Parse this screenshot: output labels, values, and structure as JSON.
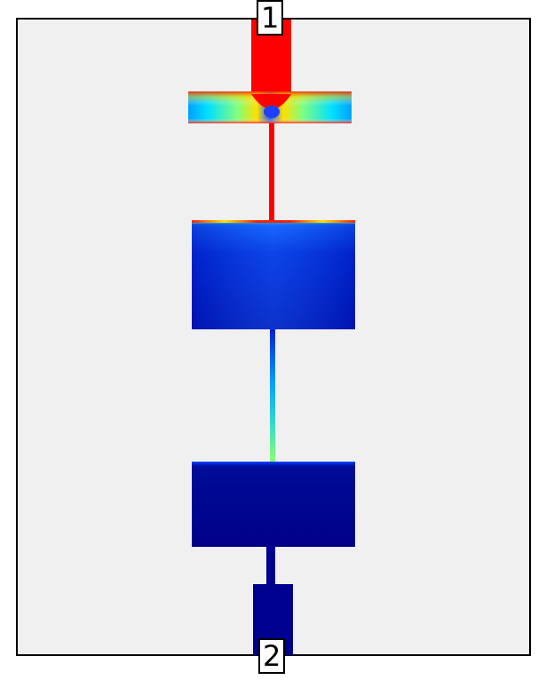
{
  "ports": [
    {
      "label": "1"
    },
    {
      "label": "2"
    }
  ],
  "colors": {
    "background": "#f0f0f0",
    "frame": "#000000",
    "hot": "#ff0000",
    "cold": "#000080",
    "colormap": "jet"
  }
}
